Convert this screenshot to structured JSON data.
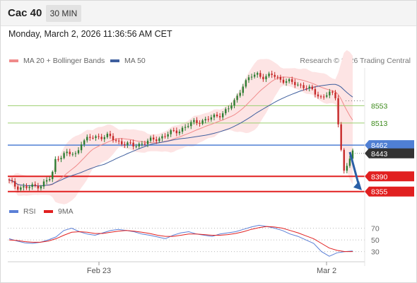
{
  "header": {
    "title": "Cac 40",
    "timeframe": "30 MIN"
  },
  "datetime": "Monday, March 2, 2026 11:36:56 AM CET",
  "legend": {
    "ma20_label": "MA 20 + Bollinger Bands",
    "ma50_label": "MA 50",
    "credit": "Research © 2026 Trading Central"
  },
  "colors": {
    "ma20": "#f08a8a",
    "ma50": "#3f5f9e",
    "band_fill": "#fde4e4",
    "up_candle": "#2e7d32",
    "down_candle": "#c62828",
    "resistance": "#9ccf6f",
    "pivot": "#4f7fd4",
    "support": "#e12020",
    "last_price_box": "#333333",
    "forecast_arrow": "#2b5fa6",
    "rsi": "#5b7fd6",
    "rsi_ma": "#e12020"
  },
  "chart_data": [
    {
      "type": "candlestick",
      "title": "Cac 40",
      "timeframe": "30 MIN",
      "x_ticks": [
        "Feb 23",
        "Mar 2"
      ],
      "ylim": [
        8335,
        8640
      ],
      "price_path": [
        [
          0,
          8378
        ],
        [
          10,
          8366
        ],
        [
          25,
          8364
        ],
        [
          45,
          8370
        ],
        [
          60,
          8388
        ],
        [
          66,
          8432
        ],
        [
          80,
          8443
        ],
        [
          95,
          8440
        ],
        [
          102,
          8470
        ],
        [
          118,
          8480
        ],
        [
          138,
          8483
        ],
        [
          155,
          8470
        ],
        [
          175,
          8460
        ],
        [
          195,
          8470
        ],
        [
          210,
          8477
        ],
        [
          225,
          8488
        ],
        [
          240,
          8496
        ],
        [
          250,
          8505
        ],
        [
          262,
          8515
        ],
        [
          278,
          8520
        ],
        [
          295,
          8530
        ],
        [
          310,
          8545
        ],
        [
          320,
          8565
        ],
        [
          330,
          8600
        ],
        [
          342,
          8620
        ],
        [
          352,
          8626
        ],
        [
          362,
          8618
        ],
        [
          372,
          8624
        ],
        [
          382,
          8615
        ],
        [
          392,
          8610
        ],
        [
          402,
          8604
        ],
        [
          412,
          8600
        ],
        [
          422,
          8595
        ],
        [
          432,
          8582
        ],
        [
          442,
          8572
        ],
        [
          452,
          8584
        ],
        [
          462,
          8570
        ],
        [
          473,
          8400
        ],
        [
          478,
          8418
        ],
        [
          486,
          8443
        ]
      ],
      "series": [
        {
          "name": "MA 20 + Bollinger Bands"
        },
        {
          "name": "MA 50"
        }
      ],
      "levels": [
        {
          "value": 8553,
          "label": "8553",
          "kind": "resistance"
        },
        {
          "value": 8513,
          "label": "8513",
          "kind": "resistance"
        },
        {
          "value": 8462,
          "label": "8462",
          "kind": "pivot"
        },
        {
          "value": 8443,
          "label": "8443",
          "kind": "last_price"
        },
        {
          "value": 8390,
          "label": "8390",
          "kind": "support"
        },
        {
          "value": 8355,
          "label": "8355",
          "kind": "support"
        }
      ],
      "forecast": {
        "from": 8446,
        "to": 8358,
        "direction": "down"
      }
    },
    {
      "type": "line",
      "series": [
        {
          "name": "RSI",
          "values": [
            52,
            48,
            45,
            44,
            46,
            50,
            55,
            66,
            70,
            64,
            60,
            58,
            62,
            66,
            68,
            66,
            64,
            60,
            58,
            55,
            52,
            58,
            62,
            64,
            60,
            58,
            56,
            60,
            62,
            64,
            68,
            72,
            75,
            73,
            70,
            66,
            60,
            56,
            50,
            44,
            30,
            22,
            28,
            30,
            31
          ]
        },
        {
          "name": "9MA",
          "values": [
            50,
            49,
            47,
            46,
            46,
            48,
            52,
            58,
            63,
            64,
            63,
            61,
            61,
            63,
            65,
            66,
            65,
            63,
            61,
            58,
            56,
            56,
            58,
            60,
            60,
            59,
            58,
            58,
            59,
            61,
            64,
            68,
            71,
            73,
            72,
            70,
            66,
            62,
            57,
            52,
            44,
            36,
            32,
            30,
            30
          ]
        }
      ],
      "yticks": [
        30,
        50,
        70
      ],
      "ylim": [
        15,
        90
      ]
    }
  ]
}
